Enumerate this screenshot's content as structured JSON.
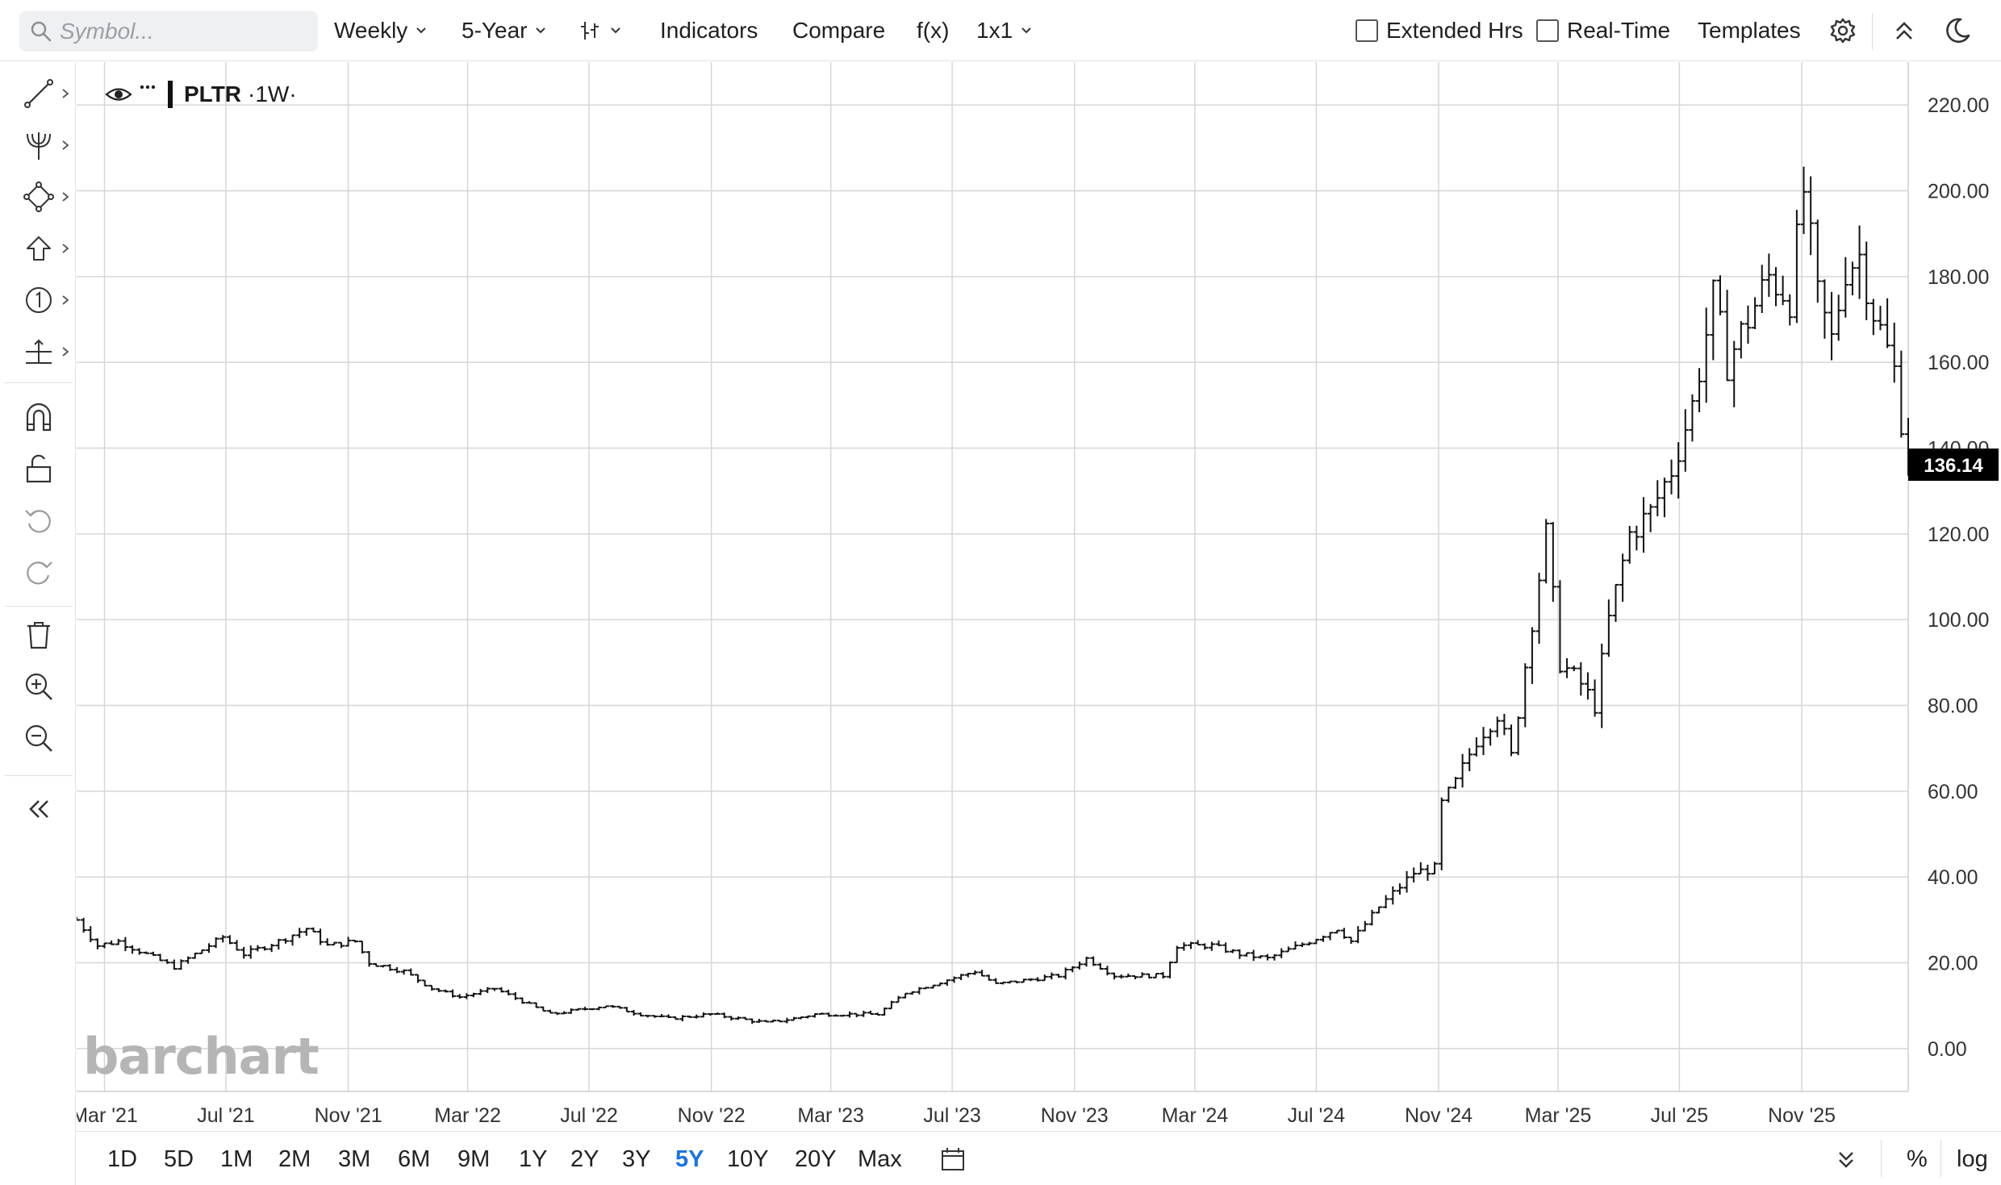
{
  "toolbar": {
    "symbol_placeholder": "Symbol...",
    "interval_label": "Weekly",
    "period_label": "5-Year",
    "indicators_label": "Indicators",
    "compare_label": "Compare",
    "fx_label": "f(x)",
    "layout_label": "1x1",
    "extended_hrs_label": "Extended Hrs",
    "extended_hrs_checked": false,
    "realtime_label": "Real-Time",
    "realtime_checked": false,
    "templates_label": "Templates"
  },
  "left_tools": [
    "line-tool-icon",
    "pitchfork-icon",
    "shape-tool-icon",
    "arrow-up-icon",
    "marker-one-icon",
    "measure-icon",
    "magnet-icon",
    "unlock-icon",
    "undo-icon",
    "redo-icon",
    "trash-icon",
    "zoom-in-icon",
    "zoom-out-icon",
    "collapse-left-icon"
  ],
  "legend": {
    "ticker": "PLTR",
    "interval": "·1W·"
  },
  "watermark": "barchart",
  "range_buttons": [
    "1D",
    "5D",
    "1M",
    "2M",
    "3M",
    "6M",
    "9M",
    "1Y",
    "2Y",
    "3Y",
    "5Y",
    "10Y",
    "20Y",
    "Max"
  ],
  "active_range": "5Y",
  "bottom_right": {
    "percent_label": "%",
    "log_label": "log"
  },
  "colors": {
    "bars": "#111111",
    "grid": "#d6d6d6",
    "active_range": "#1a73e8",
    "price_tag_bg": "#000000"
  },
  "chart_data": {
    "type": "ohlc",
    "title": "PLTR ·1W·",
    "y_range": [
      -10,
      230
    ],
    "y_ticks": [
      "0.00",
      "20.00",
      "40.00",
      "60.00",
      "80.00",
      "100.00",
      "120.00",
      "140.00",
      "160.00",
      "180.00",
      "200.00",
      "220.00"
    ],
    "x_start": "2021-02-01",
    "x_end": "2026-02-16",
    "x_ticks": [
      {
        "label": "Mar '21",
        "date": "2021-03-01"
      },
      {
        "label": "Jul '21",
        "date": "2021-07-01"
      },
      {
        "label": "Nov '21",
        "date": "2021-11-01"
      },
      {
        "label": "Mar '22",
        "date": "2022-03-01"
      },
      {
        "label": "Jul '22",
        "date": "2022-07-01"
      },
      {
        "label": "Nov '22",
        "date": "2022-11-01"
      },
      {
        "label": "Mar '23",
        "date": "2023-03-01"
      },
      {
        "label": "Jul '23",
        "date": "2023-07-01"
      },
      {
        "label": "Nov '23",
        "date": "2023-11-01"
      },
      {
        "label": "Mar '24",
        "date": "2024-03-01"
      },
      {
        "label": "Jul '24",
        "date": "2024-07-01"
      },
      {
        "label": "Nov '24",
        "date": "2024-11-01"
      },
      {
        "label": "Mar '25",
        "date": "2025-03-01"
      },
      {
        "label": "Jul '25",
        "date": "2025-07-01"
      },
      {
        "label": "Nov '25",
        "date": "2025-11-01"
      }
    ],
    "last_price": "136.14",
    "grid": true,
    "anchors": [
      [
        "2021-02-01",
        30
      ],
      [
        "2021-02-22",
        24
      ],
      [
        "2021-03-15",
        25
      ],
      [
        "2021-04-12",
        22
      ],
      [
        "2021-05-10",
        19
      ],
      [
        "2021-06-07",
        23
      ],
      [
        "2021-06-28",
        26
      ],
      [
        "2021-07-19",
        22
      ],
      [
        "2021-08-23",
        25
      ],
      [
        "2021-09-20",
        28
      ],
      [
        "2021-10-11",
        24
      ],
      [
        "2021-11-08",
        25
      ],
      [
        "2021-11-22",
        20
      ],
      [
        "2021-12-27",
        18
      ],
      [
        "2022-01-24",
        14
      ],
      [
        "2022-02-21",
        12
      ],
      [
        "2022-03-28",
        14
      ],
      [
        "2022-04-25",
        11
      ],
      [
        "2022-05-23",
        8
      ],
      [
        "2022-06-20",
        9
      ],
      [
        "2022-07-18",
        10
      ],
      [
        "2022-08-22",
        8
      ],
      [
        "2022-09-19",
        7
      ],
      [
        "2022-10-31",
        8
      ],
      [
        "2022-12-26",
        6
      ],
      [
        "2023-01-23",
        7
      ],
      [
        "2023-02-13",
        8
      ],
      [
        "2023-04-17",
        8
      ],
      [
        "2023-05-15",
        13
      ],
      [
        "2023-06-12",
        15
      ],
      [
        "2023-06-26",
        16
      ],
      [
        "2023-07-24",
        18
      ],
      [
        "2023-08-14",
        15
      ],
      [
        "2023-10-16",
        17
      ],
      [
        "2023-11-13",
        21
      ],
      [
        "2023-12-11",
        17
      ],
      [
        "2024-01-29",
        17
      ],
      [
        "2024-02-12",
        24
      ],
      [
        "2024-03-18",
        24
      ],
      [
        "2024-04-15",
        22
      ],
      [
        "2024-05-13",
        21
      ],
      [
        "2024-06-24",
        25
      ],
      [
        "2024-07-22",
        28
      ],
      [
        "2024-08-05",
        25
      ],
      [
        "2024-09-02",
        33
      ],
      [
        "2024-10-07",
        41
      ],
      [
        "2024-10-28",
        42
      ],
      [
        "2024-11-04",
        57
      ],
      [
        "2024-11-18",
        62
      ],
      [
        "2024-12-09",
        72
      ],
      [
        "2024-12-30",
        78
      ],
      [
        "2025-01-13",
        68
      ],
      [
        "2025-02-03",
        100
      ],
      [
        "2025-02-17",
        120
      ],
      [
        "2025-03-03",
        90
      ],
      [
        "2025-03-24",
        85
      ],
      [
        "2025-04-07",
        80
      ],
      [
        "2025-04-21",
        100
      ],
      [
        "2025-05-12",
        120
      ],
      [
        "2025-06-02",
        125
      ],
      [
        "2025-06-23",
        135
      ],
      [
        "2025-07-14",
        150
      ],
      [
        "2025-08-04",
        175
      ],
      [
        "2025-08-18",
        160
      ],
      [
        "2025-09-08",
        170
      ],
      [
        "2025-09-29",
        180
      ],
      [
        "2025-10-20",
        175
      ],
      [
        "2025-11-03",
        200
      ],
      [
        "2025-11-17",
        175
      ],
      [
        "2025-12-01",
        165
      ],
      [
        "2025-12-15",
        182
      ],
      [
        "2025-12-29",
        185
      ],
      [
        "2026-01-12",
        172
      ],
      [
        "2026-02-02",
        158
      ],
      [
        "2026-02-16",
        136
      ]
    ]
  }
}
